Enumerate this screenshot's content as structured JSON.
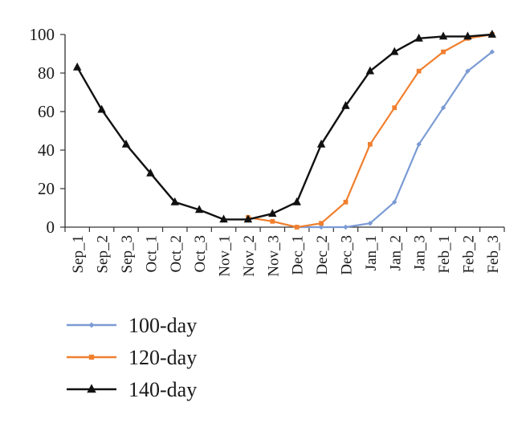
{
  "chart_data": {
    "type": "line",
    "title": "",
    "xlabel": "",
    "ylabel": "",
    "ylim": [
      0,
      100
    ],
    "yticks": [
      0,
      20,
      40,
      60,
      80,
      100
    ],
    "grid": false,
    "legend_position": "bottom-left",
    "categories": [
      "Sep_1",
      "Sep_2",
      "Sep_3",
      "Oct_1",
      "Oct_2",
      "Oct_3",
      "Nov_1",
      "Nov_2",
      "Nov_3",
      "Dec_1",
      "Dec_2",
      "Dec_3",
      "Jan_1",
      "Jan_2",
      "Jan_3",
      "Feb_1",
      "Feb_2",
      "Feb_3"
    ],
    "series": [
      {
        "name": "100-day",
        "color": "#7b9bd4",
        "marker": "diamond",
        "values": [
          null,
          null,
          null,
          null,
          null,
          null,
          null,
          null,
          null,
          0,
          0,
          0,
          2,
          13,
          43,
          62,
          81,
          91
        ]
      },
      {
        "name": "120-day",
        "color": "#f07f2e",
        "marker": "square",
        "values": [
          null,
          null,
          null,
          null,
          null,
          null,
          null,
          5,
          3,
          0,
          2,
          13,
          43,
          62,
          81,
          91,
          98,
          100
        ]
      },
      {
        "name": "140-day",
        "color": "#111111",
        "marker": "triangle",
        "values": [
          83,
          61,
          43,
          28,
          13,
          9,
          4,
          4,
          7,
          13,
          43,
          63,
          81,
          91,
          98,
          99,
          99,
          100
        ]
      }
    ]
  }
}
